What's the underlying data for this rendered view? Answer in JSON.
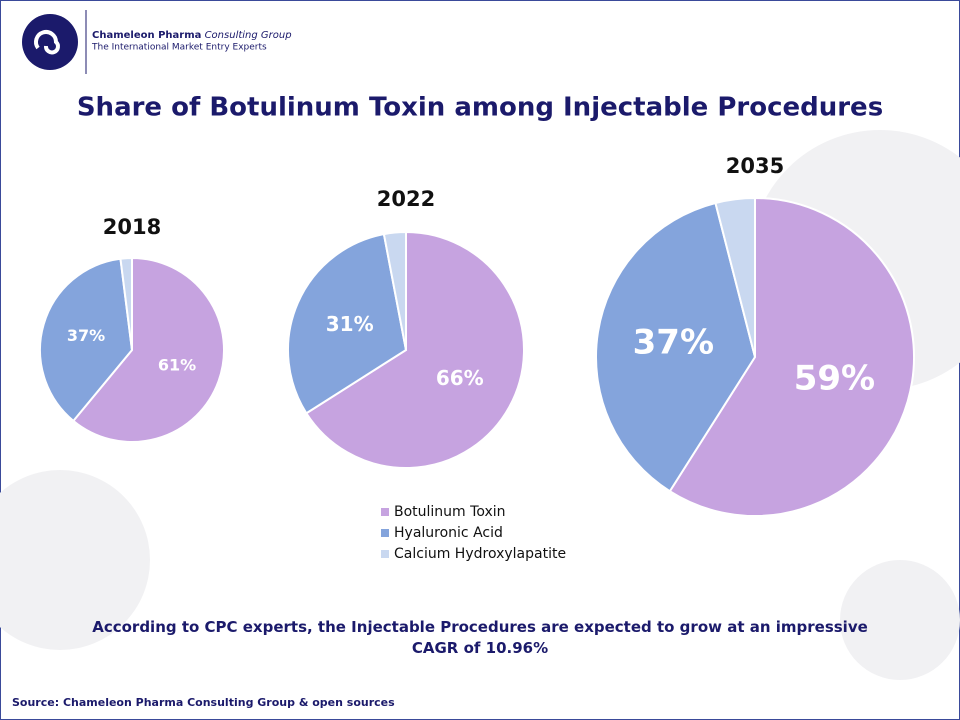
{
  "header": {
    "company_bold": "Chameleon Pharma",
    "company_italic": "Consulting Group",
    "tagline": "The International Market Entry Experts"
  },
  "title": "Share of Botulinum Toxin among Injectable Procedures",
  "chart_data": [
    {
      "type": "pie",
      "title": "2018",
      "categories": [
        "Botulinum Toxin",
        "Hyaluronic Acid",
        "Calcium Hydroxylapatite"
      ],
      "values": [
        61,
        37,
        2
      ],
      "value_labels": [
        "61%",
        "37%",
        null
      ],
      "colors": [
        "#c6a3e0",
        "#84a4dc",
        "#c9d8f0"
      ]
    },
    {
      "type": "pie",
      "title": "2022",
      "categories": [
        "Botulinum Toxin",
        "Hyaluronic Acid",
        "Calcium Hydroxylapatite"
      ],
      "values": [
        66,
        31,
        3
      ],
      "value_labels": [
        "66%",
        "31%",
        null
      ],
      "colors": [
        "#c6a3e0",
        "#84a4dc",
        "#c9d8f0"
      ]
    },
    {
      "type": "pie",
      "title": "2035",
      "categories": [
        "Botulinum Toxin",
        "Hyaluronic Acid",
        "Calcium Hydroxylapatite"
      ],
      "values": [
        59,
        37,
        4
      ],
      "value_labels": [
        "59%",
        "37%",
        null
      ],
      "colors": [
        "#c6a3e0",
        "#84a4dc",
        "#c9d8f0"
      ]
    }
  ],
  "note": "According to CPC experts, the Injectable Procedures are expected to grow at an impressive CAGR of 10.96%",
  "source": "Source: Chameleon Pharma Consulting Group & open sources"
}
